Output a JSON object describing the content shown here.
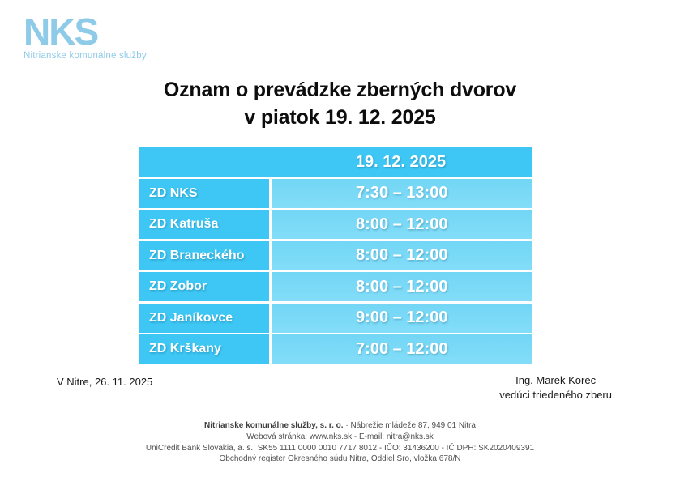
{
  "logo": {
    "text": "NKS",
    "subtitle": "Nitrianske komunálne služby",
    "brand_color": "#8ecbe8"
  },
  "title": {
    "line1": "Oznam o prevádzke zberných dvorov",
    "line2": "v piatok 19. 12. 2025"
  },
  "table": {
    "header_date": "19. 12. 2025",
    "colors": {
      "header_and_label_cells": "#3ec7f4",
      "hours_cells": "#7bdaf7",
      "text": "#ffffff"
    },
    "rows": [
      {
        "label": "ZD NKS",
        "hours": "7:30 – 13:00"
      },
      {
        "label": "ZD Katruša",
        "hours": "8:00 – 12:00"
      },
      {
        "label": "ZD Braneckého",
        "hours": "8:00 – 12:00"
      },
      {
        "label": "ZD Zobor",
        "hours": "8:00 – 12:00"
      },
      {
        "label": "ZD Janíkovce",
        "hours": "9:00 – 12:00"
      },
      {
        "label": "ZD Krškany",
        "hours": "7:00 – 12:00"
      }
    ]
  },
  "signature": {
    "place_date": "V Nitre, 26. 11. 2025",
    "name": "Ing. Marek Korec",
    "role": "vedúci triedeného zberu"
  },
  "footer": {
    "line1_bold": "Nitrianske komunálne služby, s. r. o.",
    "line1_rest": " · Nábrežie mládeže 87, 949 01 Nitra",
    "line2": "Webová stránka: www.nks.sk - E-mail: nitra@nks.sk",
    "line3": "UniCredit Bank Slovakia, a. s.: SK55 1111 0000 0010 7717 8012 - IČO: 31436200 - IČ DPH: SK2020409391",
    "line4": "Obchodný register Okresného súdu Nitra, Oddiel Sro, vložka 678/N"
  }
}
